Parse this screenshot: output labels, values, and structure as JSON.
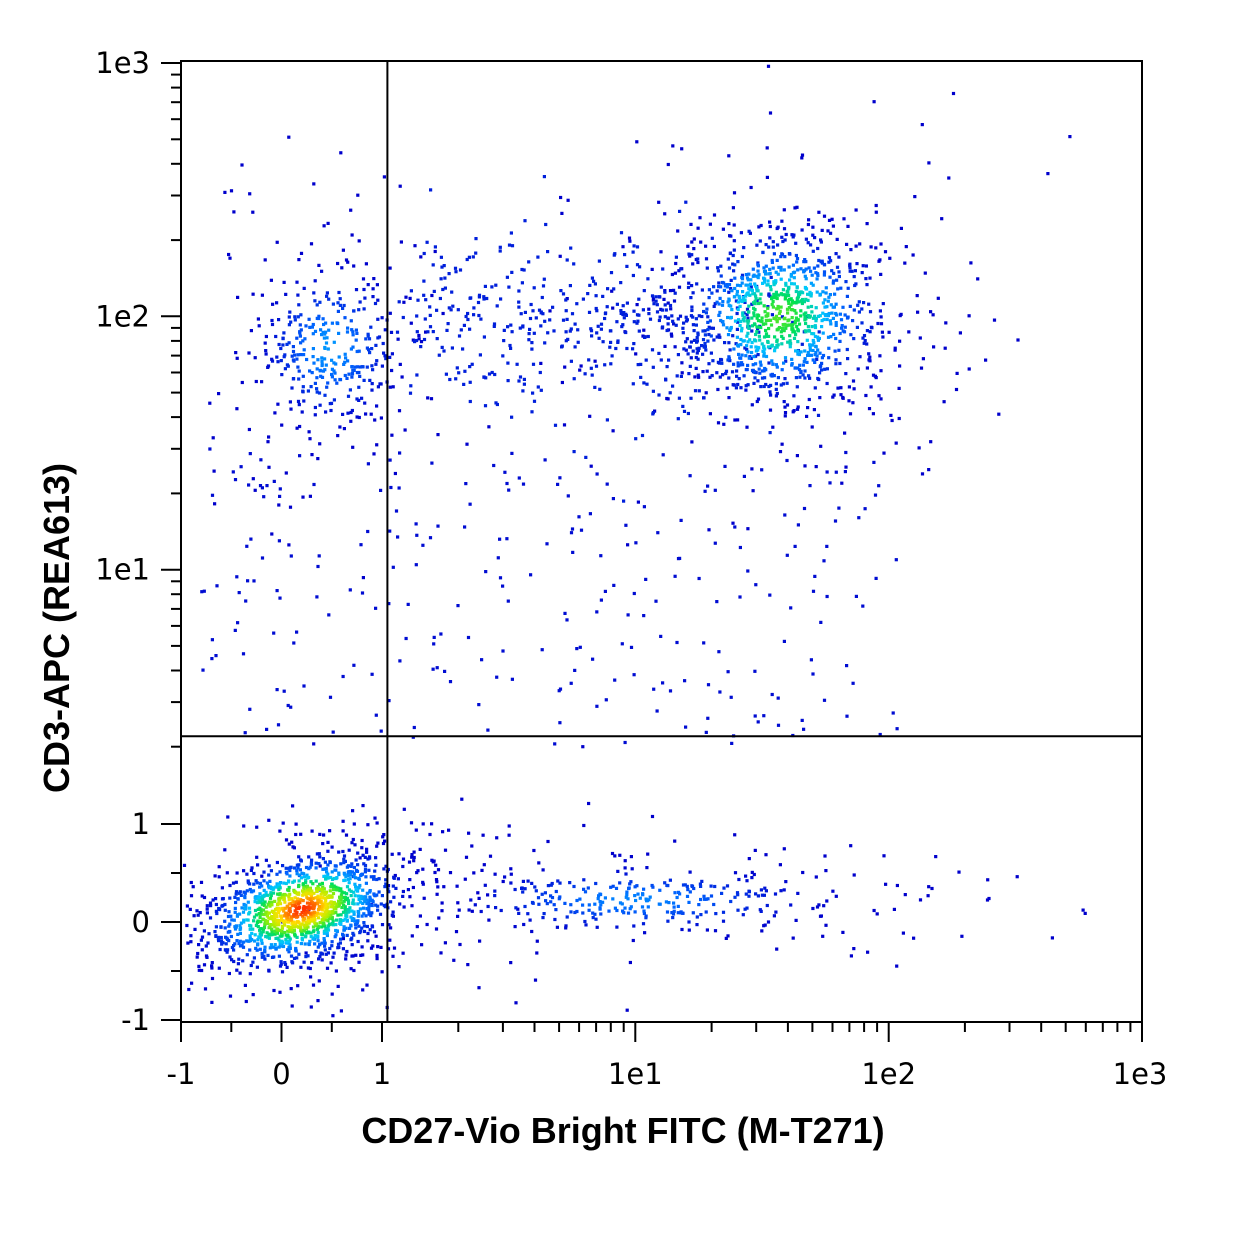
{
  "chart_data": {
    "type": "scatter",
    "title": "",
    "xlabel": "CD27-Vio Bright FITC (M-T271)",
    "ylabel": "CD3-APC (REA613)",
    "scale": "biexponential (linear around 0, log above 1)",
    "xlim": [
      -1,
      1000
    ],
    "ylim": [
      -1,
      1000
    ],
    "x_ticks": [
      "-1",
      "0",
      "1",
      "1e1",
      "1e2",
      "1e3"
    ],
    "x_tick_values": [
      -1,
      0,
      1,
      10,
      100,
      1000
    ],
    "y_ticks": [
      "-1",
      "0",
      "1",
      "1e1",
      "1e2",
      "1e3"
    ],
    "y_tick_values": [
      -1,
      0,
      1,
      10,
      100,
      1000
    ],
    "gates": {
      "x": 1.05,
      "y": 2.2
    },
    "color_scale": [
      "#0000cc",
      "#0066ff",
      "#00c8ff",
      "#00e050",
      "#a8f000",
      "#ffe000",
      "#ff3000"
    ],
    "populations": [
      {
        "x": 0.2,
        "y": 0.05,
        "density": "highest"
      },
      {
        "x": 35,
        "y": 110,
        "density": "high"
      },
      {
        "x": 0.3,
        "y": 90,
        "density": "medium"
      },
      {
        "x": 12,
        "y": 0.1,
        "density": "low"
      }
    ]
  }
}
